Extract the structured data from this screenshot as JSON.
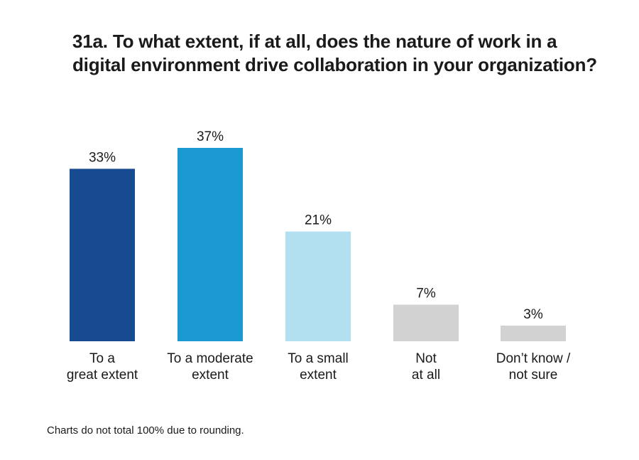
{
  "chart_data": {
    "type": "bar",
    "title": "31a. To what extent, if at all, does the nature of work in a digital environment drive collaboration in your organization?",
    "categories": [
      [
        "To a",
        "great extent"
      ],
      [
        "To a moderate",
        "extent"
      ],
      [
        "To a small",
        "extent"
      ],
      [
        "Not",
        "at all"
      ],
      [
        "Don’t know /",
        "not sure"
      ]
    ],
    "values": [
      33,
      37,
      21,
      7,
      3
    ],
    "value_labels": [
      "33%",
      "37%",
      "21%",
      "7%",
      "3%"
    ],
    "bar_colors": [
      "#164a91",
      "#1b9ad2",
      "#b2e0f1",
      "#d2d2d2",
      "#d2d2d2"
    ],
    "ylim": [
      0,
      37
    ],
    "grid": false,
    "xlabel": "",
    "ylabel": ""
  },
  "footnote": "Charts do not total 100% due to rounding."
}
